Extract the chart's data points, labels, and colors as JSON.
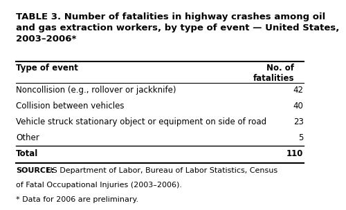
{
  "title": "TABLE 3. Number of fatalities in highway crashes among oil\nand gas extraction workers, by type of event — United States,\n2003–2006*",
  "col_header_left": "Type of event",
  "col_header_right": "No. of\nfatalities",
  "rows": [
    [
      "Noncollision (e.g., rollover or jackknife)",
      "42"
    ],
    [
      "Collision between vehicles",
      "40"
    ],
    [
      "Vehicle struck stationary object or equipment on side of road",
      "23"
    ],
    [
      "Other",
      "5"
    ]
  ],
  "total_label": "Total",
  "total_value": "110",
  "source_text": "SOURCE: US Department of Labor, Bureau of Labor Statistics, Census\nof Fatal Occupational Injuries (2003–2006).\n* Data for 2006 are preliminary.",
  "source_bold": "SOURCE:",
  "bg_color": "#ffffff",
  "text_color": "#000000",
  "title_fontsize": 9.5,
  "header_fontsize": 8.5,
  "body_fontsize": 8.5,
  "source_fontsize": 8.0
}
